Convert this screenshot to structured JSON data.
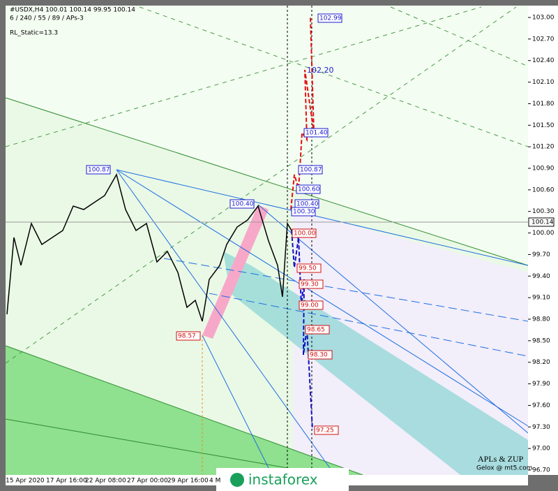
{
  "header": {
    "symbol": "#USDX,H4  100.01 100.14 99.95 100.14",
    "settings": "6 / 240 / 55 / 89 / APs-3",
    "indicator": "RL_Static=13.3"
  },
  "price_axis": [
    "103.00",
    "102.70",
    "102.40",
    "102.10",
    "101.80",
    "101.50",
    "101.20",
    "100.90",
    "100.60",
    "100.30",
    "100.00",
    "99.70",
    "99.40",
    "99.10",
    "98.80",
    "98.50",
    "98.20",
    "97.90",
    "97.60",
    "97.30",
    "97.00",
    "96.70"
  ],
  "current_price": "100.14",
  "time_axis": [
    "15 Apr 2020",
    "17 Apr 16:00",
    "22 Apr 08:00",
    "27 Apr 00:00",
    "29 Apr 16:00",
    "4 M"
  ],
  "levels": [
    "102.99",
    "102.20",
    "101.40",
    "100.87",
    "100.60",
    "100.40",
    "100.30",
    "100.87",
    "100.40",
    "100.00",
    "99.50",
    "99.30",
    "99.00",
    "98.65",
    "98.30",
    "97.25",
    "98.57"
  ],
  "watermark": "instaforex",
  "credit": [
    "APLs & ZUP",
    "Gelox @ mt5.com"
  ]
}
